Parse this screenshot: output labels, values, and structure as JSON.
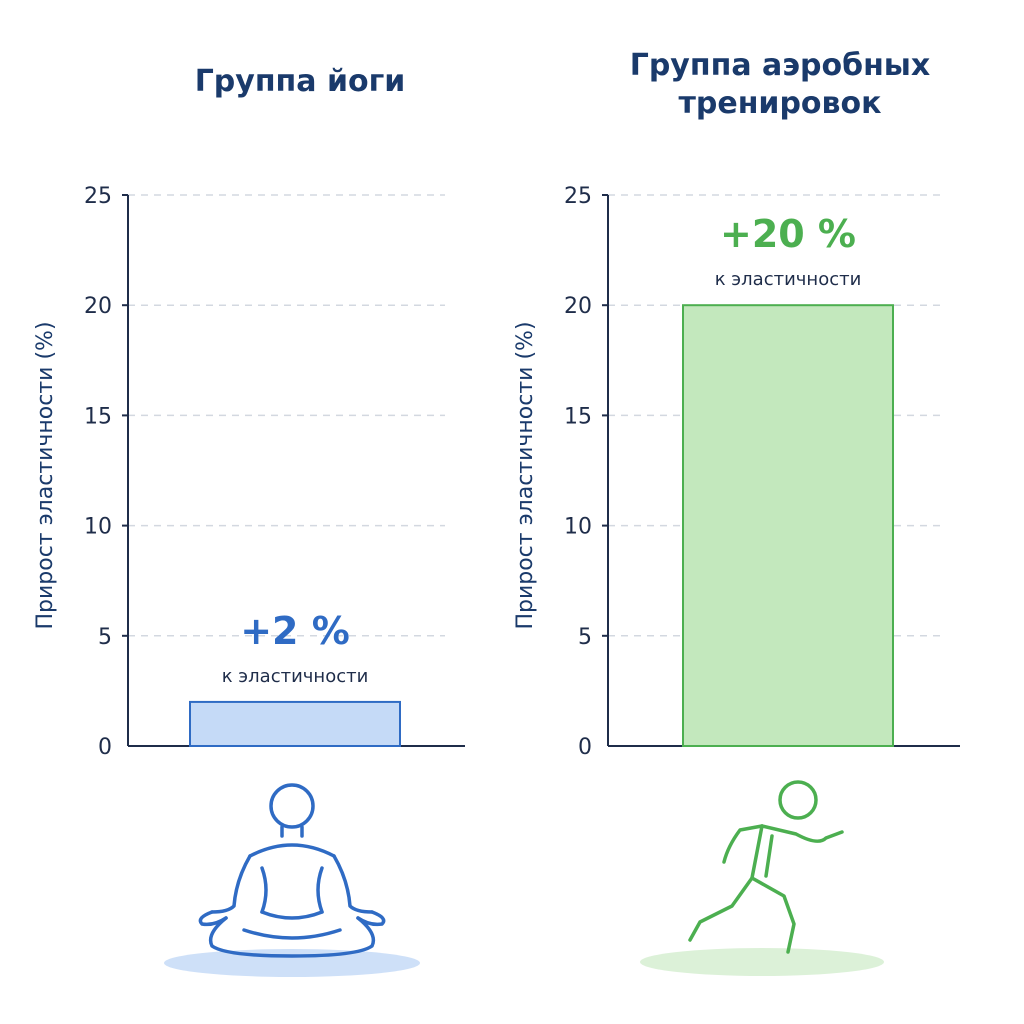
{
  "chart_data": [
    {
      "type": "bar",
      "title": "Группа йоги",
      "ylabel": "Прирост эластичности (%)",
      "ylim": [
        0,
        25
      ],
      "yticks": [
        0,
        5,
        10,
        15,
        20,
        25
      ],
      "grid": true,
      "categories": [
        ""
      ],
      "values": [
        2
      ],
      "bar_value_label": "+2 %",
      "bar_sub_label": "к эластичности",
      "color_fill": "#c5daf7",
      "color_stroke": "#2f6bc4",
      "label_color": "#2f6bc4",
      "icon": "meditation-icon"
    },
    {
      "type": "bar",
      "title": "Группа аэробных тренировок",
      "ylabel": "Прирост эластичности (%)",
      "ylim": [
        0,
        25
      ],
      "yticks": [
        0,
        5,
        10,
        15,
        20,
        25
      ],
      "grid": true,
      "categories": [
        ""
      ],
      "values": [
        20
      ],
      "bar_value_label": "+20 %",
      "bar_sub_label": "к эластичности",
      "color_fill": "#c3e8bd",
      "color_stroke": "#4caf50",
      "label_color": "#4caf50",
      "icon": "running-icon"
    }
  ]
}
